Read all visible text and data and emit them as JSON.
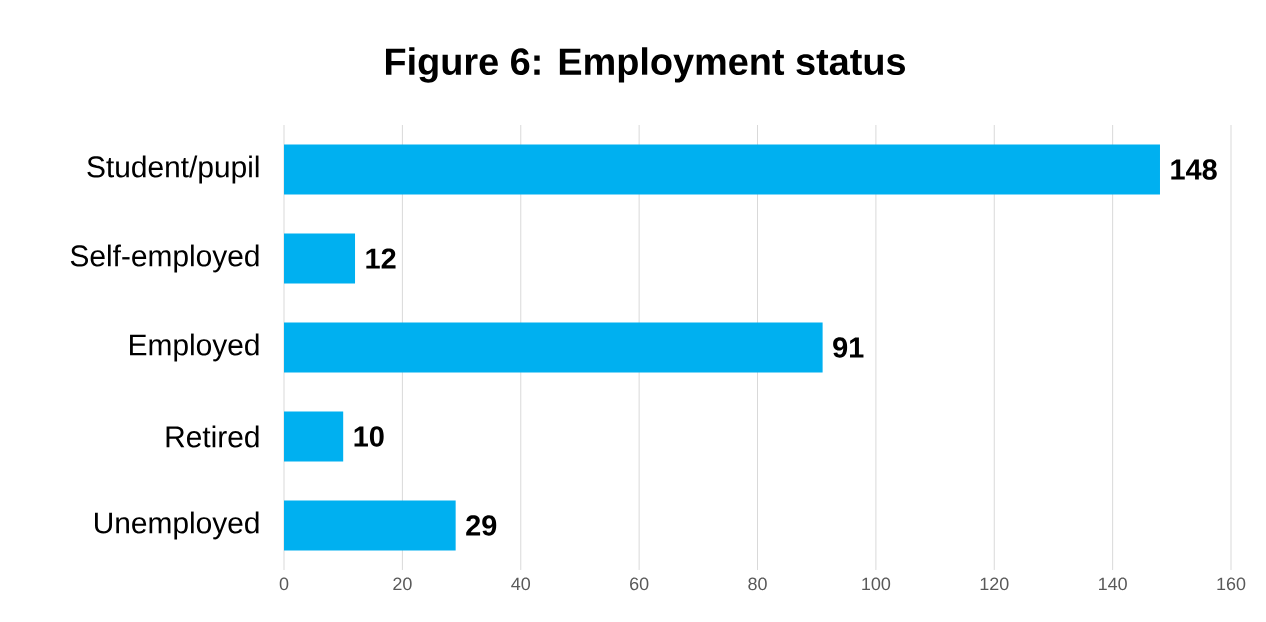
{
  "chart_data": {
    "type": "bar",
    "orientation": "horizontal",
    "title": "Figure 6: Employment status",
    "categories": [
      "Student/pupil",
      "Self-employed",
      "Employed",
      "Retired",
      "Unemployed"
    ],
    "values": [
      148,
      12,
      91,
      10,
      29
    ],
    "color": "#00b0f0",
    "xlim": [
      0,
      160
    ],
    "xticks": [
      0,
      20,
      40,
      60,
      80,
      100,
      120,
      140,
      160
    ],
    "grid": "x",
    "data_labels": true
  }
}
